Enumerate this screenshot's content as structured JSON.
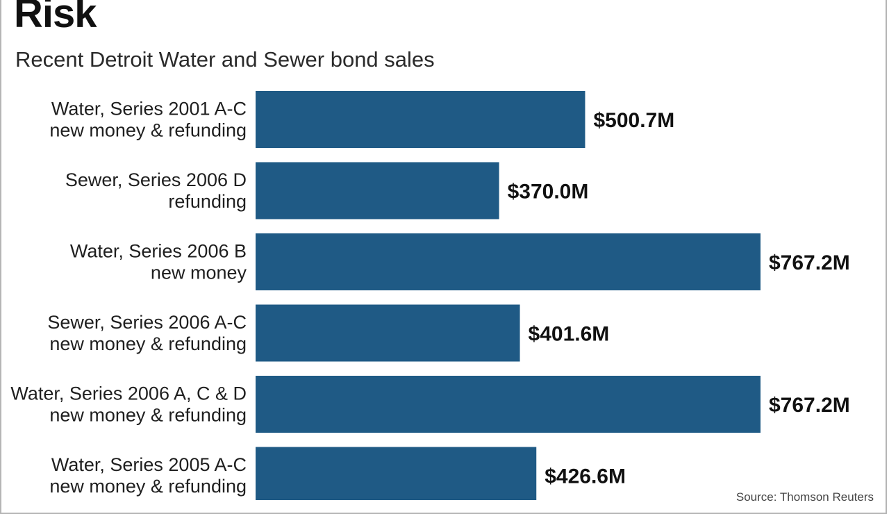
{
  "chart_data": {
    "type": "bar",
    "orientation": "horizontal",
    "title": "Risk",
    "subtitle": "Recent Detroit Water and Sewer bond sales",
    "categories": [
      [
        "Water, Series 2001 A-C",
        "new money & refunding"
      ],
      [
        "Sewer, Series 2006 D",
        "refunding"
      ],
      [
        "Water, Series 2006 B",
        "new money"
      ],
      [
        "Sewer, Series 2006 A-C",
        "new money & refunding"
      ],
      [
        "Water, Series 2006 A, C & D",
        "new money & refunding"
      ],
      [
        "Water, Series 2005 A-C",
        "new money & refunding"
      ]
    ],
    "values": [
      500.7,
      370.0,
      767.2,
      401.6,
      767.2,
      426.6
    ],
    "value_labels": [
      "$500.7M",
      "$370.0M",
      "$767.2M",
      "$401.6M",
      "$767.2M",
      "$426.6M"
    ],
    "unit": "$M",
    "xlim": [
      0,
      767.2
    ],
    "bar_color": "#1f5a85",
    "source": "Source: Thomson Reuters"
  }
}
